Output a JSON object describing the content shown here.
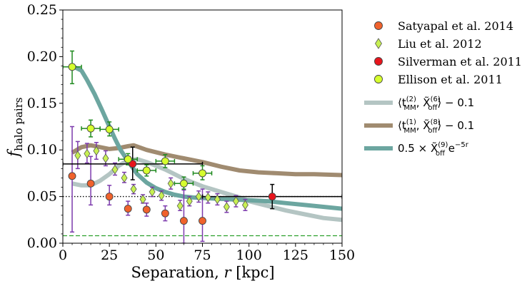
{
  "chart_data": {
    "type": "scatter",
    "xlabel_main": "Separation, ",
    "xlabel_var": "r",
    "xlabel_unit": " [kpc]",
    "ylabel_var": "f",
    "ylabel_sub": "halo pairs",
    "xlim": [
      0,
      150
    ],
    "ylim": [
      0,
      0.25
    ],
    "xticks": [
      0,
      25,
      50,
      75,
      100,
      125,
      150
    ],
    "xtick_labels": [
      "0",
      "25",
      "50",
      "75",
      "100",
      "125",
      "150"
    ],
    "yticks": [
      0,
      0.05,
      0.1,
      0.15,
      0.2,
      0.25
    ],
    "ytick_labels": [
      "0.00",
      "0.05",
      "0.10",
      "0.15",
      "0.20",
      "0.25"
    ],
    "grid": false,
    "legend_position": "outside-right",
    "reference_lines": [
      {
        "style": "dotted",
        "color": "#000000",
        "y": 0.05,
        "x_range": [
          0,
          150
        ]
      },
      {
        "style": "dashed",
        "color": "#2ca02c",
        "y": 0.008,
        "x_range": [
          0,
          150
        ]
      }
    ],
    "curves": [
      {
        "name": "⟨t_MM^(2), X̃_off^(6)⟩ − 0.1",
        "legend_html": {
          "pre": "⟨t",
          "sub1": "MM",
          "sup1": "(2)",
          "mid": ", X̃",
          "sub2": "off",
          "sup2": "(6)",
          "post": "⟩ − 0.1"
        },
        "color": "#b4c5c3",
        "width": 6,
        "points": [
          [
            5,
            0.064
          ],
          [
            10,
            0.062
          ],
          [
            15,
            0.062
          ],
          [
            20,
            0.067
          ],
          [
            25,
            0.074
          ],
          [
            30,
            0.083
          ],
          [
            35,
            0.089
          ],
          [
            40,
            0.09
          ],
          [
            45,
            0.087
          ],
          [
            50,
            0.083
          ],
          [
            55,
            0.079
          ],
          [
            60,
            0.074
          ],
          [
            65,
            0.069
          ],
          [
            70,
            0.065
          ],
          [
            75,
            0.061
          ],
          [
            80,
            0.058
          ],
          [
            85,
            0.055
          ],
          [
            90,
            0.052
          ],
          [
            95,
            0.049
          ],
          [
            100,
            0.045
          ],
          [
            110,
            0.04
          ],
          [
            120,
            0.035
          ],
          [
            130,
            0.031
          ],
          [
            140,
            0.027
          ],
          [
            150,
            0.025
          ]
        ]
      },
      {
        "name": "⟨t_MM^(1), X̃_off^(8)⟩ − 0.1",
        "legend_html": {
          "pre": "⟨t",
          "sub1": "MM",
          "sup1": "(1)",
          "mid": ", X̃",
          "sub2": "off",
          "sup2": "(8)",
          "post": "⟩ − 0.1"
        },
        "color": "#a08b70",
        "width": 6,
        "points": [
          [
            5,
            0.097
          ],
          [
            10,
            0.103
          ],
          [
            15,
            0.105
          ],
          [
            20,
            0.103
          ],
          [
            25,
            0.101
          ],
          [
            30,
            0.102
          ],
          [
            35,
            0.104
          ],
          [
            38,
            0.105
          ],
          [
            45,
            0.1
          ],
          [
            55,
            0.095
          ],
          [
            65,
            0.091
          ],
          [
            75,
            0.087
          ],
          [
            85,
            0.082
          ],
          [
            95,
            0.078
          ],
          [
            105,
            0.076
          ],
          [
            115,
            0.075
          ],
          [
            125,
            0.074
          ],
          [
            135,
            0.074
          ],
          [
            150,
            0.073
          ]
        ]
      },
      {
        "name": "0.5 × X̃_off^(9) e^(−5r)",
        "legend_html": {
          "pre": "0.5 × X̃",
          "sub1": "off",
          "sup1": "(9)",
          "mid": " e",
          "sub2": "",
          "sup2": "−5r",
          "post": ""
        },
        "color": "#6ca6a0",
        "width": 6,
        "points": [
          [
            5,
            0.19
          ],
          [
            10,
            0.185
          ],
          [
            13,
            0.175
          ],
          [
            17,
            0.16
          ],
          [
            21,
            0.143
          ],
          [
            25,
            0.125
          ],
          [
            28,
            0.112
          ],
          [
            31,
            0.1
          ],
          [
            35,
            0.088
          ],
          [
            40,
            0.074
          ],
          [
            45,
            0.065
          ],
          [
            50,
            0.059
          ],
          [
            55,
            0.055
          ],
          [
            60,
            0.052
          ],
          [
            65,
            0.05
          ],
          [
            70,
            0.049
          ],
          [
            80,
            0.048
          ],
          [
            90,
            0.047
          ],
          [
            100,
            0.046
          ],
          [
            110,
            0.045
          ],
          [
            120,
            0.043
          ],
          [
            130,
            0.041
          ],
          [
            140,
            0.039
          ],
          [
            150,
            0.037
          ]
        ]
      }
    ],
    "series": [
      {
        "name": "Satyapal et al. 2014",
        "marker": "circle",
        "color": "#f0622c",
        "ecolor": "#7c3aad",
        "points": [
          {
            "x": 5,
            "y": 0.072,
            "ylo": 0.012,
            "yhi": 0.125
          },
          {
            "x": 15,
            "y": 0.064,
            "ylo": 0.041,
            "yhi": 0.093
          },
          {
            "x": 25,
            "y": 0.05,
            "ylo": 0.041,
            "yhi": 0.062
          },
          {
            "x": 35,
            "y": 0.037,
            "ylo": 0.03,
            "yhi": 0.045
          },
          {
            "x": 45,
            "y": 0.036,
            "ylo": 0.029,
            "yhi": 0.043
          },
          {
            "x": 55,
            "y": 0.032,
            "ylo": 0.024,
            "yhi": 0.04
          },
          {
            "x": 65,
            "y": 0.024,
            "ylo": 0.0,
            "yhi": 0.057
          },
          {
            "x": 75,
            "y": 0.024,
            "ylo": 0.002,
            "yhi": 0.058
          }
        ]
      },
      {
        "name": "Liu et al. 2012",
        "marker": "diamond",
        "color": "#c7f052",
        "ecolor": "#7c3aad",
        "points": [
          {
            "x": 8,
            "y": 0.094,
            "ylo": 0.08,
            "yhi": 0.109
          },
          {
            "x": 13,
            "y": 0.096,
            "ylo": 0.086,
            "yhi": 0.107
          },
          {
            "x": 18,
            "y": 0.099,
            "ylo": 0.09,
            "yhi": 0.108
          },
          {
            "x": 23,
            "y": 0.091,
            "ylo": 0.083,
            "yhi": 0.099
          },
          {
            "x": 28,
            "y": 0.079,
            "ylo": 0.073,
            "yhi": 0.086
          },
          {
            "x": 33,
            "y": 0.07,
            "ylo": 0.065,
            "yhi": 0.076
          },
          {
            "x": 38,
            "y": 0.058,
            "ylo": 0.053,
            "yhi": 0.063
          },
          {
            "x": 43,
            "y": 0.047,
            "ylo": 0.043,
            "yhi": 0.052
          },
          {
            "x": 48,
            "y": 0.055,
            "ylo": 0.05,
            "yhi": 0.06
          },
          {
            "x": 53,
            "y": 0.051,
            "ylo": 0.046,
            "yhi": 0.056
          },
          {
            "x": 58,
            "y": 0.064,
            "ylo": 0.058,
            "yhi": 0.07
          },
          {
            "x": 63,
            "y": 0.04,
            "ylo": 0.035,
            "yhi": 0.046
          },
          {
            "x": 68,
            "y": 0.045,
            "ylo": 0.04,
            "yhi": 0.05
          },
          {
            "x": 73,
            "y": 0.05,
            "ylo": 0.044,
            "yhi": 0.056
          },
          {
            "x": 78,
            "y": 0.049,
            "ylo": 0.043,
            "yhi": 0.055
          },
          {
            "x": 83,
            "y": 0.047,
            "ylo": 0.041,
            "yhi": 0.053
          },
          {
            "x": 88,
            "y": 0.039,
            "ylo": 0.033,
            "yhi": 0.045
          },
          {
            "x": 93,
            "y": 0.045,
            "ylo": 0.039,
            "yhi": 0.051
          },
          {
            "x": 98,
            "y": 0.041,
            "ylo": 0.035,
            "yhi": 0.047
          }
        ]
      },
      {
        "name": "Silverman et al. 2011",
        "marker": "circle",
        "color": "#e8141c",
        "ecolor": "#000000",
        "points": [
          {
            "x": 37.5,
            "y": 0.085,
            "xlo": 0,
            "xhi": 75,
            "ylo": 0.068,
            "yhi": 0.103
          },
          {
            "x": 112.5,
            "y": 0.05,
            "xlo": 75,
            "xhi": 150,
            "ylo": 0.037,
            "yhi": 0.063
          }
        ]
      },
      {
        "name": "Ellison et al. 2011",
        "marker": "circle",
        "color": "#d6ff2e",
        "ecolor": "#1f8a1f",
        "points": [
          {
            "x": 5,
            "y": 0.189,
            "xlo": 0,
            "xhi": 10,
            "ylo": 0.171,
            "yhi": 0.206
          },
          {
            "x": 15,
            "y": 0.123,
            "xlo": 10,
            "xhi": 20,
            "ylo": 0.114,
            "yhi": 0.132
          },
          {
            "x": 25,
            "y": 0.122,
            "xlo": 20,
            "xhi": 30,
            "ylo": 0.115,
            "yhi": 0.13
          },
          {
            "x": 35,
            "y": 0.09,
            "xlo": 30,
            "xhi": 40,
            "ylo": 0.084,
            "yhi": 0.096
          },
          {
            "x": 45,
            "y": 0.078,
            "xlo": 40,
            "xhi": 50,
            "ylo": 0.072,
            "yhi": 0.084
          },
          {
            "x": 55,
            "y": 0.088,
            "xlo": 50,
            "xhi": 60,
            "ylo": 0.081,
            "yhi": 0.095
          },
          {
            "x": 65,
            "y": 0.064,
            "xlo": 60,
            "xhi": 70,
            "ylo": 0.058,
            "yhi": 0.071
          },
          {
            "x": 75,
            "y": 0.075,
            "xlo": 70,
            "xhi": 80,
            "ylo": 0.068,
            "yhi": 0.083
          }
        ]
      }
    ]
  }
}
